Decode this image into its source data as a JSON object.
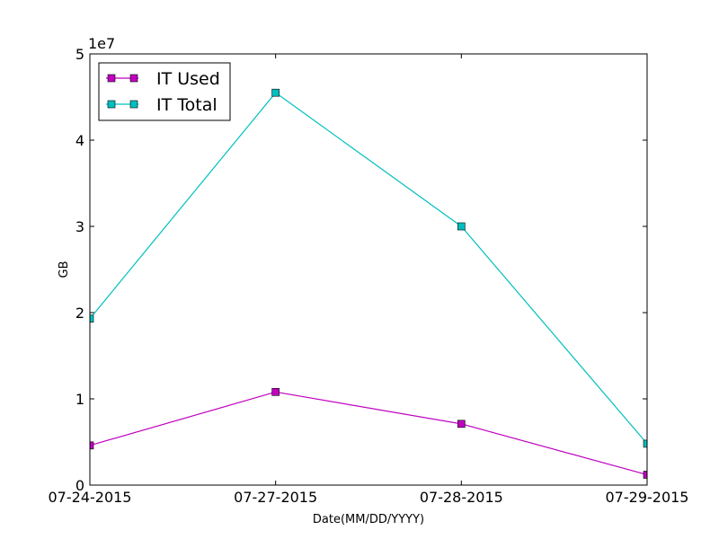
{
  "chart_data": {
    "type": "line",
    "title": "",
    "xlabel": "Date(MM/DD/YYYY)",
    "ylabel": "GB",
    "categories": [
      "07-24-2015",
      "07-27-2015",
      "07-28-2015",
      "07-29-2015"
    ],
    "y_scale_label": "1e7",
    "y_ticks": [
      0,
      1,
      2,
      3,
      4,
      5
    ],
    "ylim": [
      0,
      50000000
    ],
    "grid": false,
    "legend_position": "upper-left",
    "series": [
      {
        "name": "IT Used",
        "color": "#bf00bf",
        "values": [
          4600000,
          10800000,
          7100000,
          1200000
        ]
      },
      {
        "name": "IT Total",
        "color": "#00bfbf",
        "values": [
          19300000,
          45500000,
          30000000,
          4800000
        ]
      }
    ]
  }
}
